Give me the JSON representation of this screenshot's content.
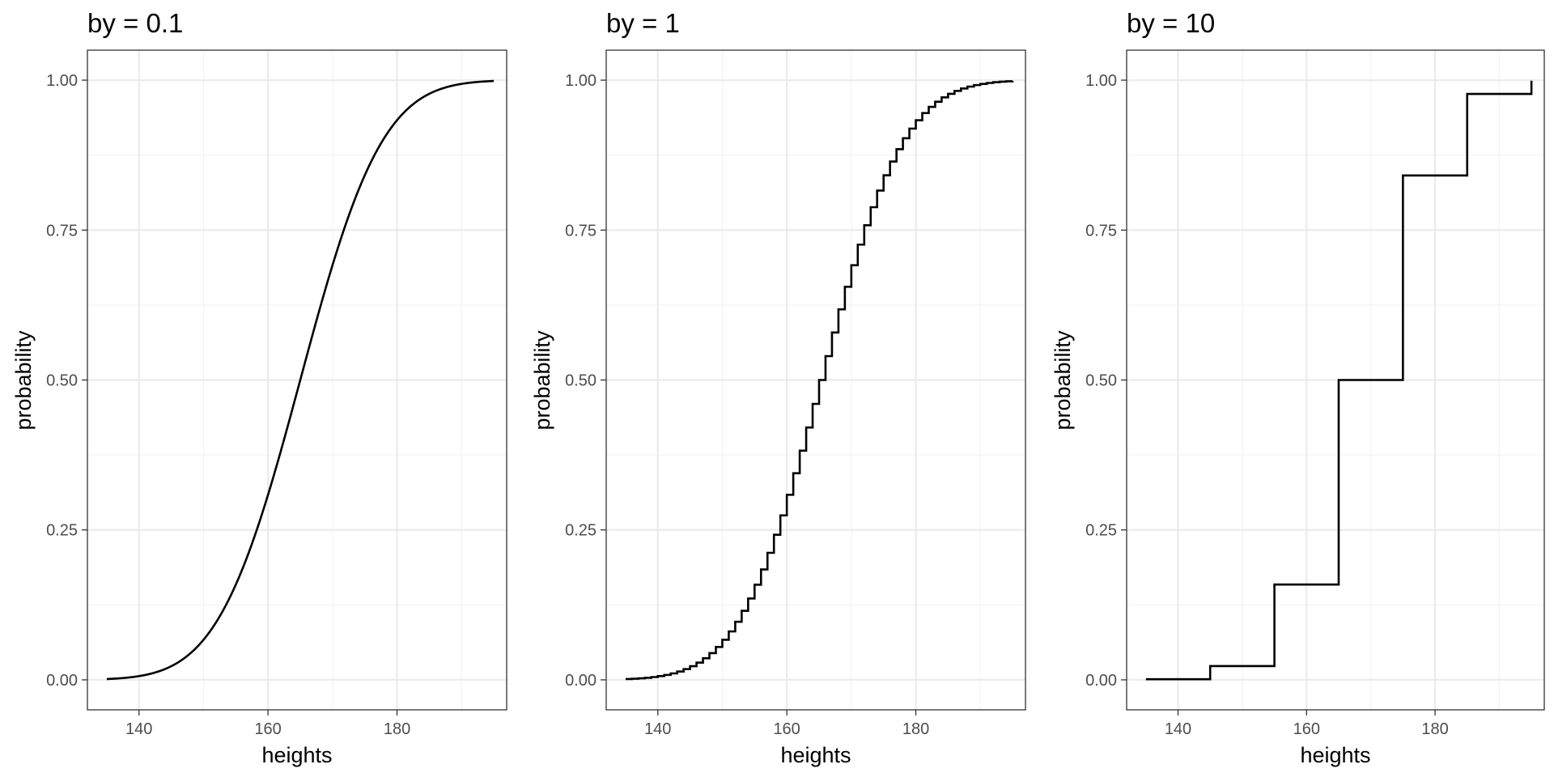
{
  "chart_data": [
    {
      "type": "line",
      "title": "by = 0.1",
      "xlabel": "heights",
      "ylabel": "probability",
      "step": 0.1,
      "xlim": [
        132,
        197
      ],
      "ylim": [
        -0.05,
        1.05
      ],
      "x_ticks": [
        140,
        160,
        180
      ],
      "x_tick_labels": [
        "140",
        "160",
        "180"
      ],
      "y_ticks": [
        0,
        0.25,
        0.5,
        0.75,
        1
      ],
      "y_tick_labels": [
        "0.00",
        "0.25",
        "0.50",
        "0.75",
        "1.00"
      ],
      "grid": true,
      "line_color": "#000000",
      "x": [
        135,
        140,
        145,
        150,
        155,
        160,
        165,
        170,
        175,
        180,
        185,
        190,
        195
      ],
      "y": [
        0.001,
        0.006,
        0.023,
        0.067,
        0.159,
        0.309,
        0.5,
        0.691,
        0.841,
        0.933,
        0.977,
        0.994,
        0.999
      ]
    },
    {
      "type": "line",
      "title": "by = 1",
      "xlabel": "heights",
      "ylabel": "probability",
      "step": 1,
      "xlim": [
        132,
        197
      ],
      "ylim": [
        -0.05,
        1.05
      ],
      "x_ticks": [
        140,
        160,
        180
      ],
      "x_tick_labels": [
        "140",
        "160",
        "180"
      ],
      "y_ticks": [
        0,
        0.25,
        0.5,
        0.75,
        1
      ],
      "y_tick_labels": [
        "0.00",
        "0.25",
        "0.50",
        "0.75",
        "1.00"
      ],
      "grid": true,
      "line_color": "#000000",
      "x": [
        135,
        140,
        145,
        150,
        155,
        160,
        165,
        170,
        175,
        180,
        185,
        190,
        195
      ],
      "y": [
        0.001,
        0.006,
        0.023,
        0.067,
        0.159,
        0.309,
        0.5,
        0.691,
        0.841,
        0.933,
        0.977,
        0.994,
        0.999
      ]
    },
    {
      "type": "line",
      "title": "by = 10",
      "xlabel": "heights",
      "ylabel": "probability",
      "step": 10,
      "xlim": [
        132,
        197
      ],
      "ylim": [
        -0.05,
        1.05
      ],
      "x_ticks": [
        140,
        160,
        180
      ],
      "x_tick_labels": [
        "140",
        "160",
        "180"
      ],
      "y_ticks": [
        0,
        0.25,
        0.5,
        0.75,
        1
      ],
      "y_tick_labels": [
        "0.00",
        "0.25",
        "0.50",
        "0.75",
        "1.00"
      ],
      "grid": true,
      "line_color": "#000000",
      "x": [
        135,
        145,
        155,
        165,
        175,
        185,
        195
      ],
      "y": [
        0.001,
        0.023,
        0.159,
        0.5,
        0.841,
        0.977,
        0.999
      ]
    }
  ]
}
